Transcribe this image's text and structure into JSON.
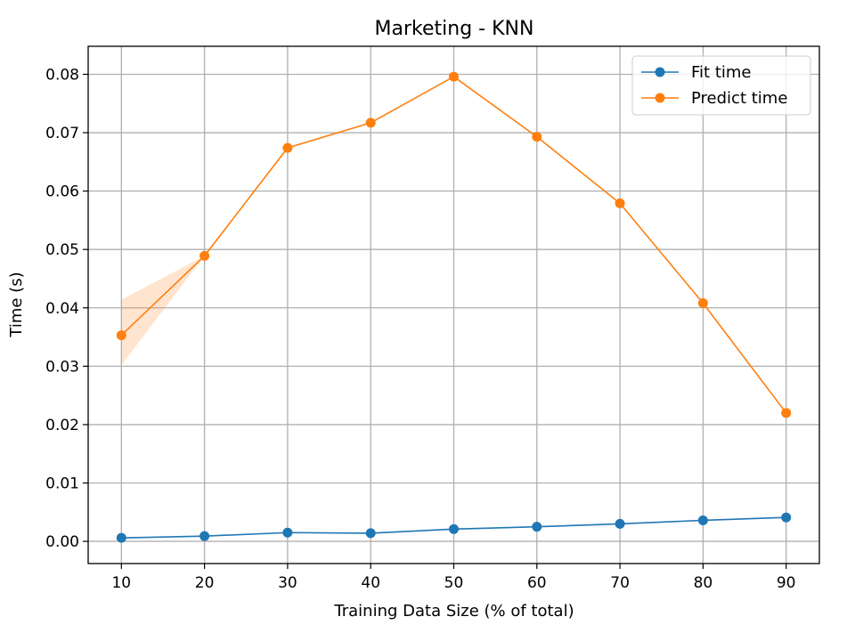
{
  "chart_data": {
    "type": "line",
    "title": "Marketing - KNN",
    "xlabel": "Training Data Size (% of total)",
    "ylabel": "Time (s)",
    "x": [
      10,
      20,
      30,
      40,
      50,
      60,
      70,
      80,
      90
    ],
    "xlim": [
      6,
      94
    ],
    "ylim": [
      -0.0038,
      0.0848
    ],
    "xticks": [
      10,
      20,
      30,
      40,
      50,
      60,
      70,
      80,
      90
    ],
    "yticks": [
      0.0,
      0.01,
      0.02,
      0.03,
      0.04,
      0.05,
      0.06,
      0.07,
      0.08
    ],
    "ytick_labels": [
      "0.00",
      "0.01",
      "0.02",
      "0.03",
      "0.04",
      "0.05",
      "0.06",
      "0.07",
      "0.08"
    ],
    "grid": true,
    "legend_position": "top-right",
    "series": [
      {
        "name": "Fit time",
        "color": "#1f77b4",
        "values": [
          0.0006,
          0.0009,
          0.0015,
          0.0014,
          0.0021,
          0.0025,
          0.003,
          0.0036,
          0.0041
        ],
        "band_lower": [
          0.0006,
          0.0009,
          0.0015,
          0.0014,
          0.0021,
          0.0025,
          0.003,
          0.0036,
          0.0041
        ],
        "band_upper": [
          0.0006,
          0.0009,
          0.0015,
          0.0014,
          0.0021,
          0.0025,
          0.003,
          0.0036,
          0.0041
        ]
      },
      {
        "name": "Predict time",
        "color": "#ff7f0e",
        "values": [
          0.0353,
          0.0489,
          0.0674,
          0.0717,
          0.0796,
          0.0693,
          0.0579,
          0.0408,
          0.022
        ],
        "band_lower": [
          0.0302,
          0.0489,
          0.0674,
          0.0717,
          0.0796,
          0.0693,
          0.0579,
          0.0408,
          0.022
        ],
        "band_upper": [
          0.0414,
          0.0489,
          0.0674,
          0.0717,
          0.0796,
          0.0693,
          0.0579,
          0.0408,
          0.022
        ]
      }
    ]
  }
}
